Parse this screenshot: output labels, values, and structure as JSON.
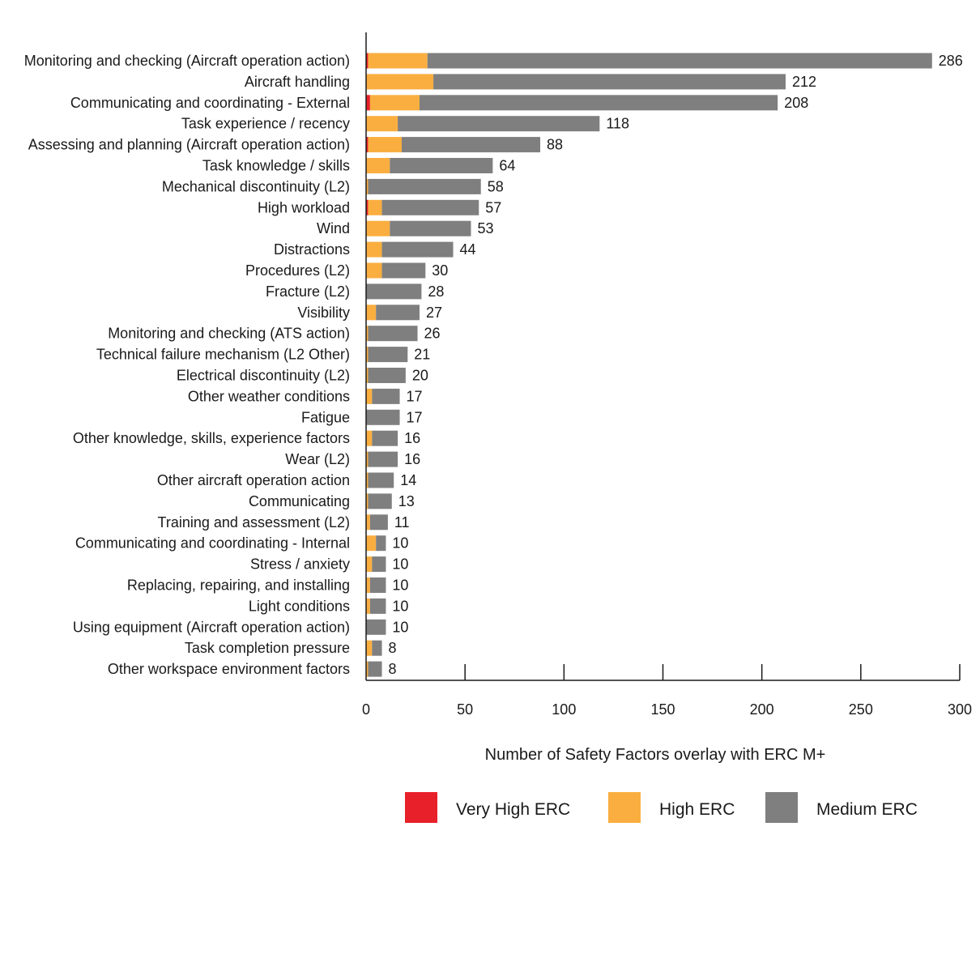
{
  "chart_data": {
    "type": "bar",
    "orientation": "horizontal",
    "stacked": true,
    "xlabel": "Number of Safety Factors overlay with ERC M+",
    "xlim": [
      0,
      300
    ],
    "xticks": [
      0,
      50,
      100,
      150,
      200,
      250,
      300
    ],
    "grid": false,
    "legend_position": "bottom",
    "categories": [
      "Monitoring and checking (Aircraft operation action)",
      "Aircraft handling",
      "Communicating and coordinating - External",
      "Task experience / recency",
      "Assessing and planning (Aircraft operation action)",
      "Task knowledge / skills",
      "Mechanical discontinuity (L2)",
      "High workload",
      "Wind",
      "Distractions",
      "Procedures (L2)",
      "Fracture (L2)",
      "Visibility",
      "Monitoring and checking (ATS action)",
      "Technical failure mechanism (L2 Other)",
      "Electrical discontinuity (L2)",
      "Other weather conditions",
      "Fatigue",
      "Other knowledge, skills, experience factors",
      "Wear (L2)",
      "Other aircraft operation action",
      "Communicating",
      "Training and assessment (L2)",
      "Communicating and coordinating - Internal",
      "Stress / anxiety",
      "Replacing, repairing, and installing",
      "Light conditions",
      "Using equipment (Aircraft operation action)",
      "Task completion pressure",
      "Other workspace environment factors"
    ],
    "series": [
      {
        "name": "Very High ERC",
        "color": "#e8202a",
        "values": [
          1,
          0,
          2,
          0,
          1,
          0,
          0,
          1,
          0,
          0,
          0,
          0,
          0,
          0,
          0,
          0,
          0,
          0,
          0,
          0,
          0,
          0,
          0,
          0,
          0,
          0,
          0,
          0,
          0,
          0
        ]
      },
      {
        "name": "High ERC",
        "color": "#faae40",
        "values": [
          30,
          34,
          25,
          16,
          17,
          12,
          1,
          7,
          12,
          8,
          8,
          0,
          5,
          1,
          1,
          1,
          3,
          0,
          3,
          1,
          1,
          1,
          2,
          5,
          3,
          2,
          2,
          0,
          3,
          1
        ]
      },
      {
        "name": "Medium ERC",
        "color": "#7f7f7f",
        "values": [
          255,
          178,
          181,
          102,
          70,
          52,
          57,
          49,
          41,
          36,
          22,
          28,
          22,
          25,
          20,
          19,
          14,
          17,
          13,
          15,
          13,
          12,
          9,
          5,
          7,
          8,
          8,
          10,
          5,
          7
        ]
      }
    ],
    "totals": [
      286,
      212,
      208,
      118,
      88,
      64,
      58,
      57,
      53,
      44,
      30,
      28,
      27,
      26,
      21,
      20,
      17,
      17,
      16,
      16,
      14,
      13,
      11,
      10,
      10,
      10,
      10,
      10,
      8,
      8
    ]
  }
}
